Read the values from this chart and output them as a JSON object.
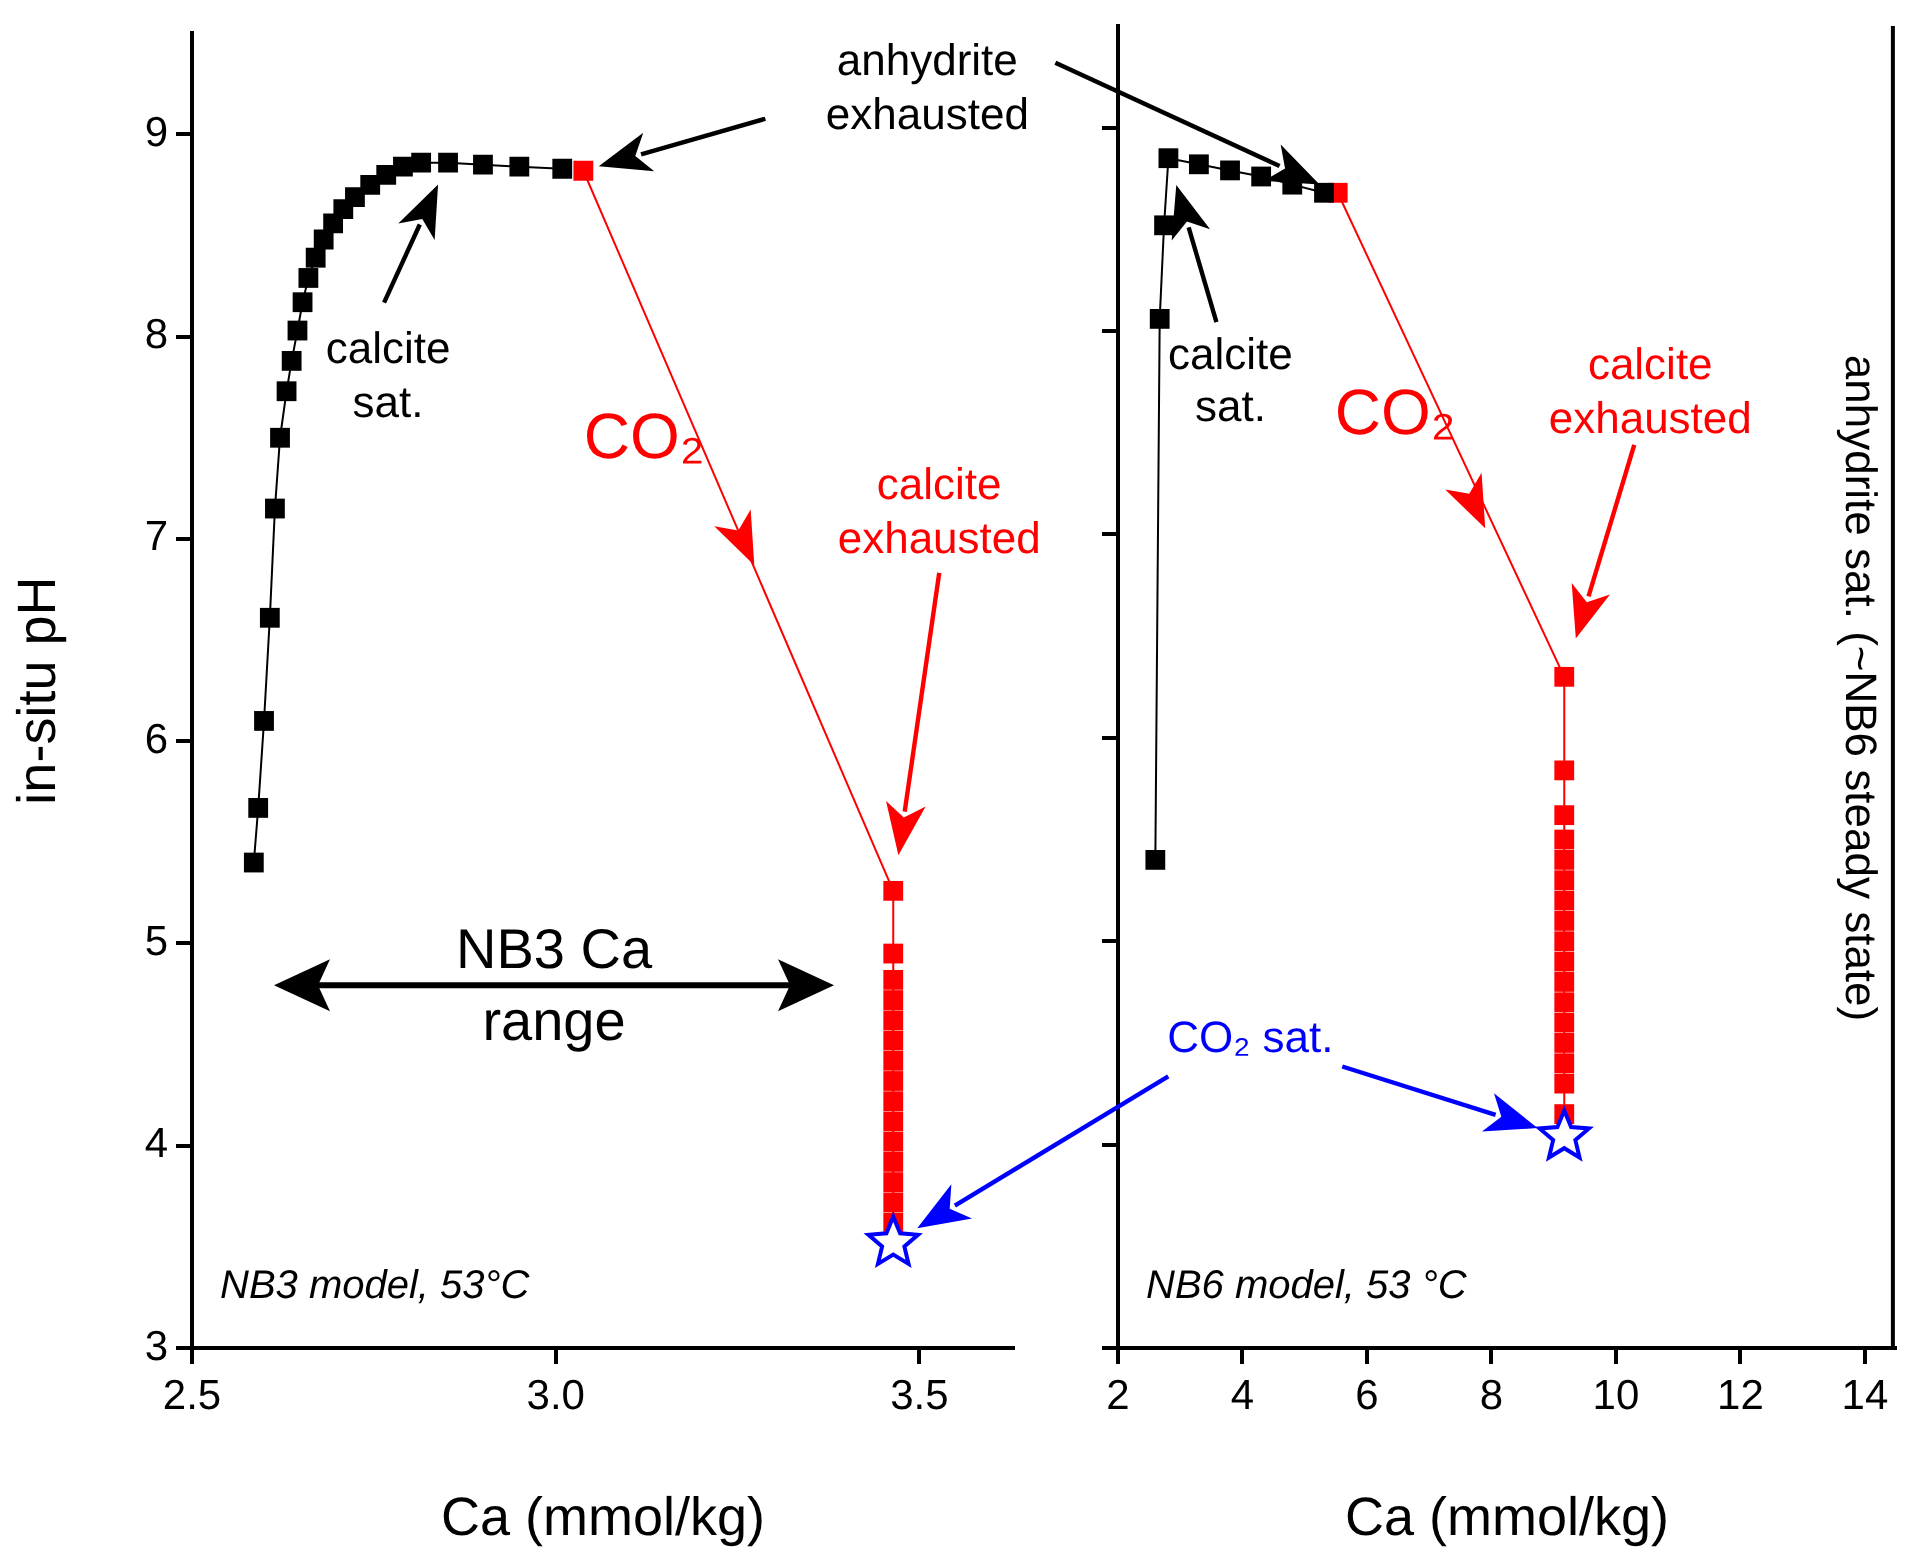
{
  "chart_data": [
    {
      "type": "line",
      "xlabel": "Ca (mmol/kg)",
      "ylabel": "in-situ pH",
      "xlim": [
        2.5,
        3.63
      ],
      "xticks": [
        2.5,
        {
          "value": 3,
          "label": "3.0"
        },
        3.5
      ],
      "ylim": [
        3,
        9.5
      ],
      "yticks": [
        3,
        4,
        5,
        6,
        7,
        8,
        9
      ],
      "series": [
        {
          "color": "#000000",
          "marker": "square",
          "x": [
            2.585,
            2.591,
            2.599,
            2.607,
            2.614,
            2.621,
            2.63,
            2.637,
            2.645,
            2.652,
            2.66,
            2.67,
            2.681,
            2.694,
            2.708,
            2.724,
            2.745,
            2.767,
            2.79,
            2.815,
            2.852,
            2.9,
            2.95,
            3.009
          ],
          "values": [
            5.4,
            5.67,
            6.1,
            6.61,
            7.15,
            7.5,
            7.73,
            7.88,
            8.03,
            8.17,
            8.29,
            8.39,
            8.48,
            8.56,
            8.63,
            8.69,
            8.75,
            8.8,
            8.84,
            8.86,
            8.86,
            8.85,
            8.84,
            8.83
          ]
        },
        {
          "color": "#ff0000",
          "marker": "square",
          "x": [
            3.038,
            3.464,
            3.464,
            3.464,
            3.464,
            3.464,
            3.464,
            3.464,
            3.464,
            3.464,
            3.464,
            3.464,
            3.464,
            3.464,
            3.464,
            3.464
          ],
          "values": [
            8.82,
            5.26,
            4.95,
            4.82,
            4.72,
            4.62,
            4.52,
            4.42,
            4.32,
            4.22,
            4.12,
            4.02,
            3.92,
            3.82,
            3.72,
            3.62
          ]
        },
        {
          "color": "#0000ff",
          "marker": "star",
          "x": [
            3.464
          ],
          "values": [
            3.52
          ]
        }
      ],
      "annotations": [
        "anhydrite exhausted",
        "calcite sat.",
        {
          "text": "CO₂",
          "x": 3.273,
          "y": 6.87
        },
        "calcite exhausted",
        "NB3 Ca range",
        "NB3 model, 53°C"
      ]
    },
    {
      "type": "line",
      "xlabel": "Ca (mmol/kg)",
      "xlim": [
        2,
        14.5
      ],
      "xticks": [
        2,
        4,
        6,
        8,
        10,
        12,
        14
      ],
      "ylim": [
        3,
        9.5
      ],
      "yticks": [
        3,
        4,
        5,
        6,
        7,
        8,
        9
      ],
      "tick_labels": "x",
      "series": [
        {
          "color": "#000000",
          "marker": "square",
          "x": [
            2.6,
            2.67,
            2.74,
            2.81,
            3.3,
            3.8,
            4.3,
            4.8,
            5.31
          ],
          "values": [
            5.4,
            8.06,
            8.52,
            8.85,
            8.82,
            8.79,
            8.76,
            8.72,
            8.68
          ]
        },
        {
          "color": "#ff0000",
          "marker": "square",
          "x": [
            5.53,
            9.17,
            9.17,
            9.17,
            9.17,
            9.17,
            9.17,
            9.17,
            9.17,
            9.17,
            9.17,
            9.17,
            9.17,
            9.17,
            9.17,
            9.17,
            9.17,
            9.17
          ],
          "values": [
            8.68,
            6.3,
            5.84,
            5.62,
            5.5,
            5.4,
            5.3,
            5.2,
            5.1,
            5.0,
            4.9,
            4.8,
            4.7,
            4.6,
            4.5,
            4.4,
            4.3,
            4.15
          ]
        },
        {
          "color": "#0000ff",
          "marker": "star",
          "x": [
            9.17
          ],
          "values": [
            4.04
          ]
        }
      ],
      "ref_lines": [
        {
          "axis": "x",
          "value": 14.45,
          "label": "anhydrite sat. (~NB6 steady state)",
          "color": "#000000"
        }
      ],
      "annotations": [
        "calcite sat.",
        {
          "text": "CO₂",
          "x": 7.9,
          "y": 7.03
        },
        "calcite exhausted",
        "CO₂ sat.",
        "NB6 model, 53 °C"
      ]
    }
  ]
}
